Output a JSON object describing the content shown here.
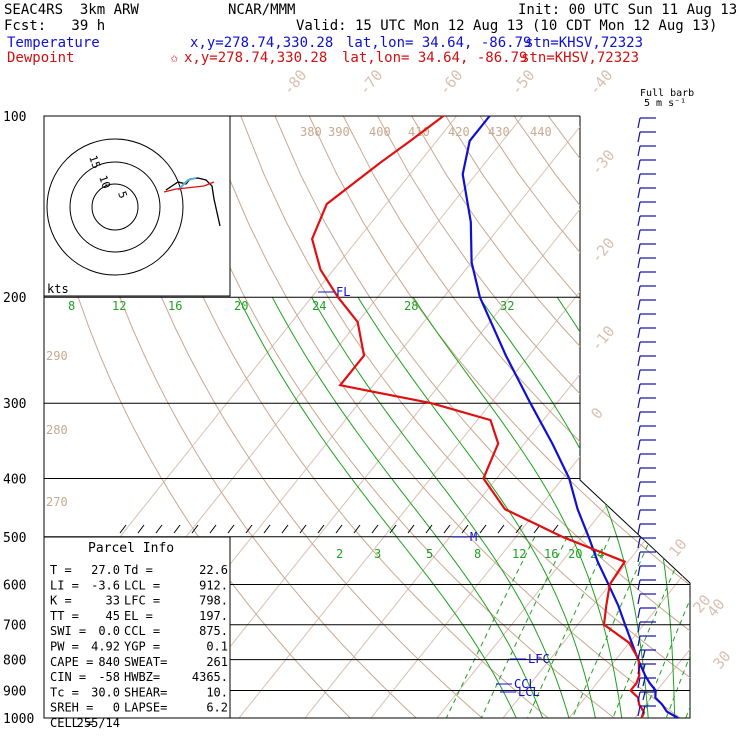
{
  "header": {
    "model": "SEAC4RS  3km ARW",
    "org": "NCAR/MMM",
    "init": "Init: 00 UTC Sun 11 Aug 13",
    "fcst": "Fcst:   39 h",
    "valid": "Valid: 15 UTC Mon 12 Aug 13 (10 CDT Mon 12 Aug 13)",
    "temp_label": "Temperature",
    "temp_xy": "x,y=278.74,330.28",
    "temp_latlon": "lat,lon= 34.64, -86.79",
    "temp_stn": "stn=KHSV,72323",
    "dew_label": "Dewpoint",
    "dew_mark": "✩",
    "dew_xy": "x,y=278.74,330.28",
    "dew_latlon": "lat,lon= 34.64, -86.79",
    "dew_stn": "stn=KHSV,72323"
  },
  "colors": {
    "temperature": "#1010d0",
    "dewpoint": "#e01010",
    "isotherm": "#d8c0b0",
    "dry_adiabat": "#c8a890",
    "moist_adiabat": "#20a020",
    "mixing_ratio": "#20a020",
    "isobar": "#000000",
    "wind": "#1010a0"
  },
  "barb_legend": {
    "title": "Full barb",
    "units": "5 m s⁻¹"
  },
  "hodograph": {
    "unit_label": "kts",
    "ring_labels": [
      "5",
      "10",
      "15"
    ]
  },
  "parcel": {
    "title": "Parcel Info",
    "rows": [
      {
        "left": "T  =",
        "lval": "27.0",
        "right": "Td =",
        "rval": "22.6"
      },
      {
        "left": "LI =",
        "lval": "-3.6",
        "right": "LCL =",
        "rval": "912."
      },
      {
        "left": "K  =",
        "lval": "33",
        "right": "LFC =",
        "rval": "798."
      },
      {
        "left": "TT =",
        "lval": "45",
        "right": "EL  =",
        "rval": "197."
      },
      {
        "left": "SWI =",
        "lval": "0.0",
        "right": "CCL =",
        "rval": "875."
      },
      {
        "left": "PW =",
        "lval": "4.92",
        "right": "YGP =",
        "rval": "0.1"
      },
      {
        "left": "CAPE =",
        "lval": "840",
        "right": "SWEAT=",
        "rval": "261"
      },
      {
        "left": "CIN =",
        "lval": "-58",
        "right": "HWBZ=",
        "rval": "4365."
      },
      {
        "left": "Tc =",
        "lval": "30.0",
        "right": "SHEAR=",
        "rval": "10."
      },
      {
        "left": "SREH =",
        "lval": "0",
        "right": "LAPSE=",
        "rval": "6.2"
      },
      {
        "left": "CELL =",
        "lval": "255/14",
        "right": "",
        "rval": ""
      }
    ]
  },
  "chart_data": {
    "type": "line",
    "title": "",
    "ylabel": "",
    "y_scale": "log-pressure",
    "pressure_ticks": [
      100,
      200,
      300,
      400,
      500,
      600,
      700,
      800,
      900,
      1000
    ],
    "isotherm_labels": [
      "-80",
      "-70",
      "-60",
      "-50",
      "-40",
      "-30",
      "-20",
      "-10",
      "0",
      "10",
      "20",
      "30",
      "40"
    ],
    "isotherms_degC": [
      -80,
      -70,
      -60,
      -50,
      -40,
      -30,
      -20,
      -10,
      0,
      10,
      20,
      30,
      40
    ],
    "theta_labels_K": [
      "380",
      "390",
      "400",
      "410",
      "420",
      "430",
      "440"
    ],
    "theta_left_labels_K": [
      "290",
      "280",
      "270"
    ],
    "theta_e_labels_degC": [
      "8",
      "12",
      "16",
      "20",
      "24",
      "28",
      "32"
    ],
    "mixing_ratio_labels": [
      "2",
      "3",
      "5",
      "8",
      "12",
      "16",
      "20",
      "24"
    ],
    "series": [
      {
        "name": "Temperature",
        "color": "#1010d0",
        "points": [
          [
            1000,
            26.5
          ],
          [
            975,
            24.0
          ],
          [
            950,
            22.5
          ],
          [
            925,
            20.6
          ],
          [
            900,
            19.8
          ],
          [
            875,
            18.0
          ],
          [
            850,
            16.4
          ],
          [
            800,
            13.4
          ],
          [
            750,
            10.4
          ],
          [
            700,
            7.2
          ],
          [
            650,
            3.8
          ],
          [
            600,
            -0.2
          ],
          [
            550,
            -4.6
          ],
          [
            500,
            -9.0
          ],
          [
            450,
            -14.0
          ],
          [
            400,
            -19.0
          ],
          [
            350,
            -25.8
          ],
          [
            300,
            -34.0
          ],
          [
            250,
            -43.5
          ],
          [
            200,
            -54.5
          ],
          [
            175,
            -60.0
          ],
          [
            150,
            -65.0
          ],
          [
            125,
            -72.0
          ],
          [
            110,
            -75.0
          ],
          [
            100,
            -75.0
          ]
        ]
      },
      {
        "name": "Dewpoint",
        "color": "#e01010",
        "points": [
          [
            1000,
            21.0
          ],
          [
            975,
            20.5
          ],
          [
            950,
            19.0
          ],
          [
            925,
            18.0
          ],
          [
            900,
            16.0
          ],
          [
            875,
            16.0
          ],
          [
            850,
            15.5
          ],
          [
            825,
            14.5
          ],
          [
            800,
            13.5
          ],
          [
            750,
            10.0
          ],
          [
            700,
            4.0
          ],
          [
            650,
            2.0
          ],
          [
            600,
            0.0
          ],
          [
            550,
            -0.5
          ],
          [
            500,
            -13.0
          ],
          [
            450,
            -25.0
          ],
          [
            400,
            -32.0
          ],
          [
            350,
            -34.0
          ],
          [
            320,
            -38.0
          ],
          [
            300,
            -49.0
          ],
          [
            280,
            -65.0
          ],
          [
            250,
            -65.0
          ],
          [
            220,
            -70.0
          ],
          [
            200,
            -76.0
          ],
          [
            180,
            -82.0
          ],
          [
            160,
            -87.0
          ],
          [
            140,
            -89.0
          ],
          [
            120,
            -86.0
          ],
          [
            110,
            -84.0
          ],
          [
            100,
            -82.0
          ]
        ]
      }
    ],
    "levels": [
      {
        "label": "FL",
        "pressure": 196
      },
      {
        "label": "M",
        "pressure": 503
      },
      {
        "label": "LFC",
        "pressure": 798
      },
      {
        "label": "CCL",
        "pressure": 875
      },
      {
        "label": "LCL",
        "pressure": 912
      }
    ]
  }
}
